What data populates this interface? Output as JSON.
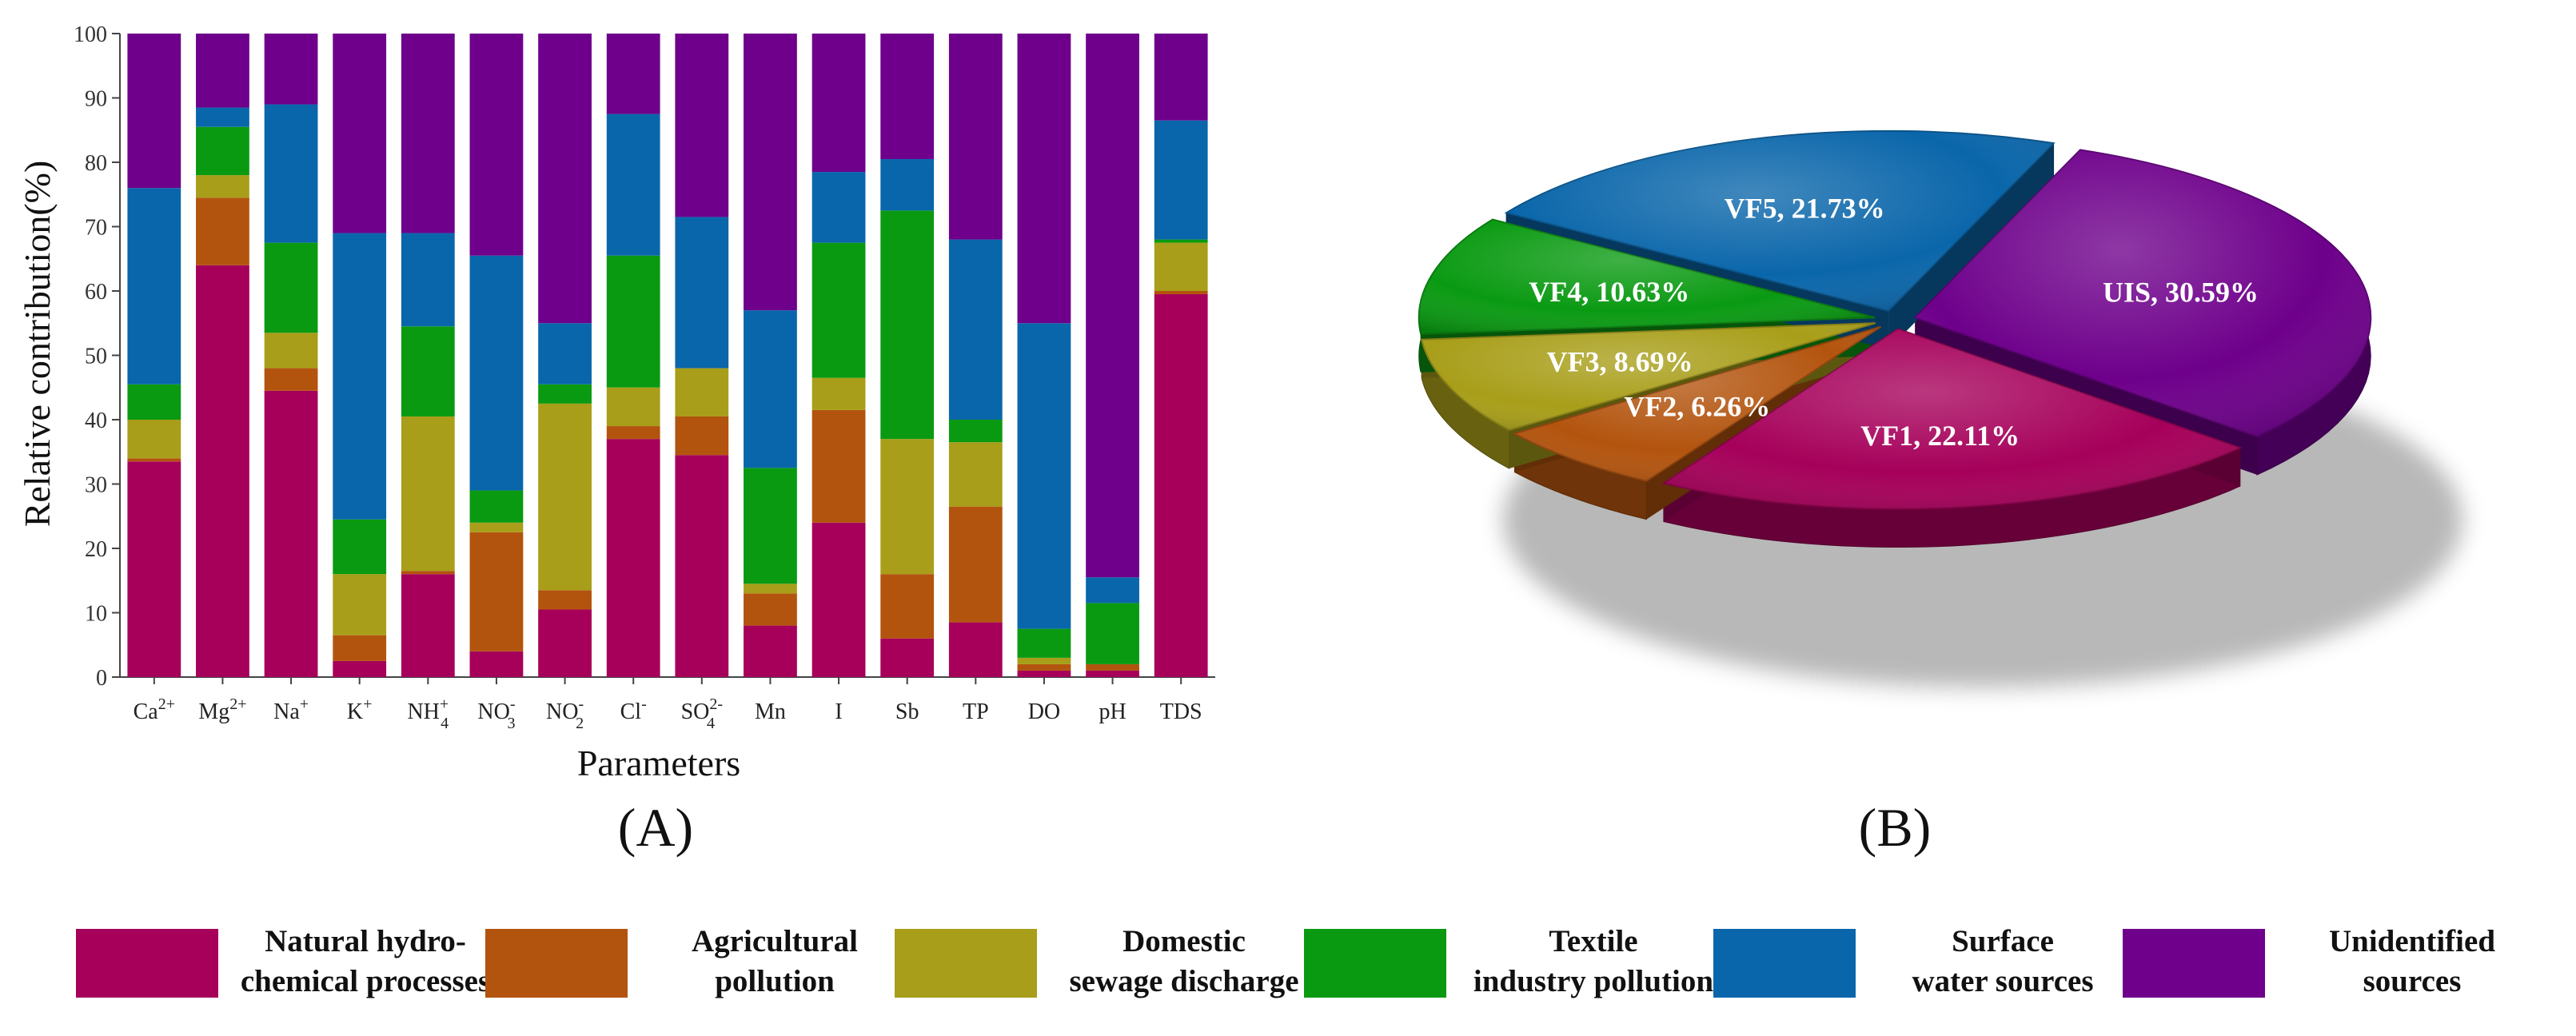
{
  "colors": {
    "natural": "#A6005A",
    "agricultural": "#B3540E",
    "domestic": "#A89E19",
    "textile": "#0A9A12",
    "surface": "#0A66AA",
    "unidentified": "#6E008B"
  },
  "chart_data": [
    {
      "type": "bar",
      "stacked": true,
      "panel_label": "(A)",
      "xlabel": "Parameters",
      "ylabel": "Relative contribution(%)",
      "ylim": [
        0,
        100
      ],
      "yticks": [
        "0",
        "10",
        "20",
        "30",
        "40",
        "50",
        "60",
        "70",
        "80",
        "90",
        "100"
      ],
      "categories": [
        {
          "base": "Ca",
          "sup": "2+",
          "sub": ""
        },
        {
          "base": "Mg",
          "sup": "2+",
          "sub": ""
        },
        {
          "base": "Na",
          "sup": "+",
          "sub": ""
        },
        {
          "base": "K",
          "sup": "+",
          "sub": ""
        },
        {
          "base": "NH",
          "sup": "+",
          "sub": "4"
        },
        {
          "base": "NO",
          "sup": "-",
          "sub": "3"
        },
        {
          "base": "NO",
          "sup": "-",
          "sub": "2"
        },
        {
          "base": "Cl",
          "sup": "-",
          "sub": ""
        },
        {
          "base": "SO",
          "sup": "2-",
          "sub": "4"
        },
        {
          "base": "Mn",
          "sup": "",
          "sub": ""
        },
        {
          "base": "I",
          "sup": "",
          "sub": ""
        },
        {
          "base": "Sb",
          "sup": "",
          "sub": ""
        },
        {
          "base": "TP",
          "sup": "",
          "sub": ""
        },
        {
          "base": "DO",
          "sup": "",
          "sub": ""
        },
        {
          "base": "pH",
          "sup": "",
          "sub": ""
        },
        {
          "base": "TDS",
          "sup": "",
          "sub": ""
        }
      ],
      "series": [
        {
          "name": "Natural hydro-chemical processes",
          "key": "natural",
          "values": [
            33.5,
            64.0,
            44.5,
            2.5,
            16.0,
            4.0,
            10.5,
            37.0,
            34.5,
            8.0,
            24.0,
            6.0,
            8.5,
            1.0,
            1.0,
            59.5
          ]
        },
        {
          "name": "Agricultural pollution",
          "key": "agricultural",
          "values": [
            0.5,
            10.5,
            3.5,
            4.0,
            0.5,
            18.5,
            3.0,
            2.0,
            6.0,
            5.0,
            17.5,
            10.0,
            18.0,
            1.0,
            1.0,
            0.5
          ]
        },
        {
          "name": "Domestic sewage discharge",
          "key": "domestic",
          "values": [
            6.0,
            3.5,
            5.5,
            9.5,
            24.0,
            1.5,
            29.0,
            6.0,
            7.5,
            1.5,
            5.0,
            21.0,
            10.0,
            1.0,
            0.0,
            7.5
          ]
        },
        {
          "name": "Textile industry pollution",
          "key": "textile",
          "values": [
            5.5,
            7.5,
            14.0,
            8.5,
            14.0,
            5.0,
            3.0,
            20.5,
            0.0,
            18.0,
            21.0,
            35.5,
            3.5,
            4.5,
            9.5,
            0.5
          ]
        },
        {
          "name": "Surface water sources",
          "key": "surface",
          "values": [
            30.5,
            3.0,
            21.5,
            44.5,
            14.5,
            36.5,
            9.5,
            22.0,
            23.5,
            24.5,
            11.0,
            8.0,
            28.0,
            47.5,
            4.0,
            18.5
          ]
        },
        {
          "name": "Unidentified sources",
          "key": "unidentified",
          "values": [
            24.0,
            11.5,
            11.0,
            31.0,
            31.0,
            34.5,
            45.0,
            12.5,
            28.5,
            43.0,
            21.5,
            19.5,
            32.0,
            45.0,
            84.5,
            13.5
          ]
        }
      ]
    },
    {
      "type": "pie",
      "panel_label": "(B)",
      "slices": [
        {
          "label": "UIS, 30.59%",
          "name": "UIS",
          "value": 30.59,
          "key": "unidentified"
        },
        {
          "label": "VF1, 22.11%",
          "name": "VF1",
          "value": 22.11,
          "key": "natural"
        },
        {
          "label": "VF2, 6.26%",
          "name": "VF2",
          "value": 6.26,
          "key": "agricultural"
        },
        {
          "label": "VF3, 8.69%",
          "name": "VF3",
          "value": 8.69,
          "key": "domestic"
        },
        {
          "label": "VF4, 10.63%",
          "name": "VF4",
          "value": 10.63,
          "key": "textile"
        },
        {
          "label": "VF5, 21.73%",
          "name": "VF5",
          "value": 21.73,
          "key": "surface"
        }
      ]
    }
  ],
  "legend": [
    {
      "key": "natural",
      "line1": "Natural hydro-",
      "line2": "chemical processes"
    },
    {
      "key": "agricultural",
      "line1": "Agricultural",
      "line2": "pollution"
    },
    {
      "key": "domestic",
      "line1": "Domestic",
      "line2": "sewage discharge"
    },
    {
      "key": "textile",
      "line1": "Textile",
      "line2": "industry pollution"
    },
    {
      "key": "surface",
      "line1": "Surface",
      "line2": "water sources"
    },
    {
      "key": "unidentified",
      "line1": "Unidentified",
      "line2": "sources"
    }
  ]
}
